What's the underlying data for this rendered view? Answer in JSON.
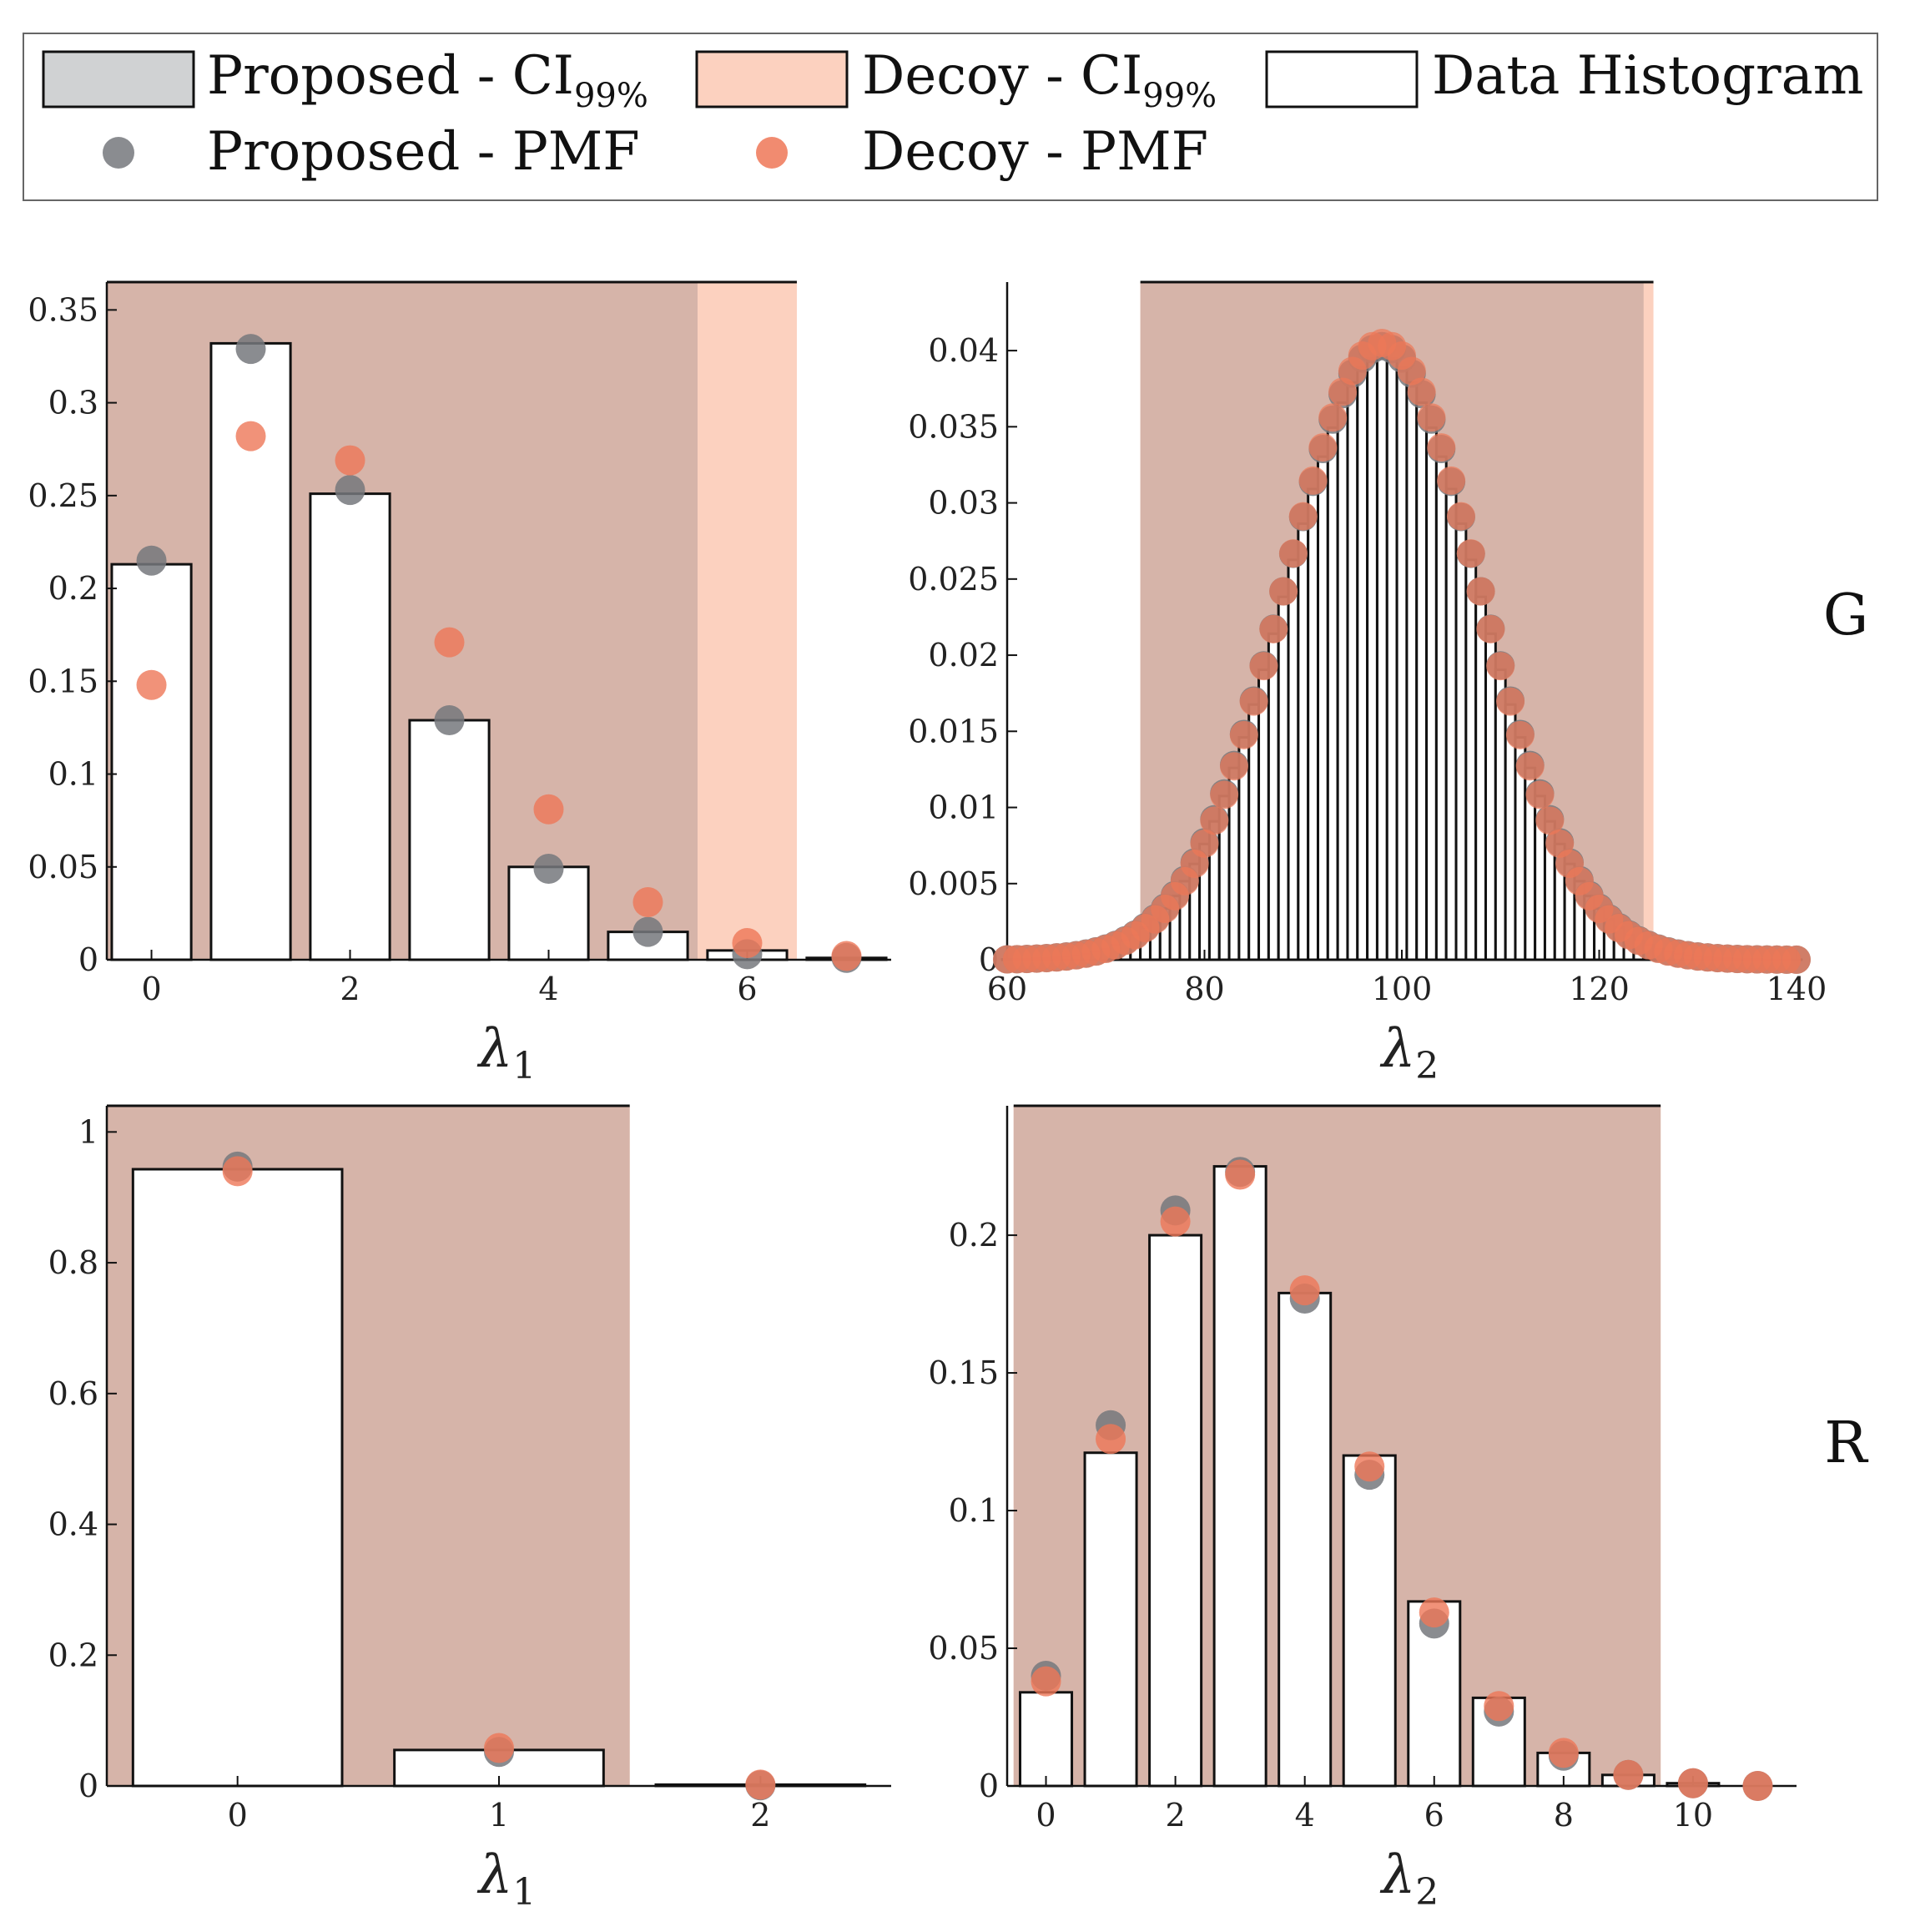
{
  "colors": {
    "proposed_ci": "#d0d2d3",
    "decoy_ci": "#fcd1bf",
    "overlap_ci": "#d6b4a9",
    "proposed_pmf": "#76787c",
    "decoy_pmf": "#ee7757",
    "hist_stroke": "#111111",
    "hist_fill": "#ffffff"
  },
  "legend": {
    "items": [
      {
        "id": "proposed-ci",
        "label": "Proposed - CI",
        "sub": "99%",
        "kind": "patch",
        "color": "#d0d2d3"
      },
      {
        "id": "decoy-ci",
        "label": "Decoy - CI",
        "sub": "99%",
        "kind": "patch",
        "color": "#fcd1bf"
      },
      {
        "id": "data-histogram",
        "label": "Data Histogram",
        "sub": "",
        "kind": "patch",
        "color": "#ffffff"
      },
      {
        "id": "proposed-pmf",
        "label": "Proposed - PMF",
        "sub": "",
        "kind": "dot",
        "color": "#76787c"
      },
      {
        "id": "decoy-pmf",
        "label": "Decoy - PMF",
        "sub": "",
        "kind": "dot",
        "color": "#ee7757"
      }
    ]
  },
  "row_labels": [
    "G",
    "R"
  ],
  "chart_data": [
    {
      "id": "G-lambda1",
      "type": "bar",
      "row": "G",
      "xlabel": "λ",
      "xlabel_sub": "1",
      "xlim": [
        -0.45,
        7.45
      ],
      "ylim": [
        0,
        0.365
      ],
      "xticks": [
        0,
        2,
        4,
        6
      ],
      "yticks": [
        0,
        0.05,
        0.1,
        0.15,
        0.2,
        0.25,
        0.3,
        0.35
      ],
      "ytick_labels": [
        "0",
        "0.05",
        "0.1",
        "0.15",
        "0.2",
        "0.25",
        "0.3",
        "0.35"
      ],
      "bar_width": 0.8,
      "histogram": {
        "x": [
          0,
          1,
          2,
          3,
          4,
          5,
          6,
          7
        ],
        "values": [
          0.213,
          0.332,
          0.251,
          0.129,
          0.05,
          0.015,
          0.005,
          0.001
        ]
      },
      "proposed_pmf": {
        "x": [
          0,
          1,
          2,
          3,
          4,
          5,
          6,
          7
        ],
        "values": [
          0.215,
          0.329,
          0.253,
          0.129,
          0.049,
          0.015,
          0.003,
          0.001
        ]
      },
      "decoy_pmf": {
        "x": [
          0,
          1,
          2,
          3,
          4,
          5,
          6,
          7
        ],
        "values": [
          0.148,
          0.282,
          0.269,
          0.171,
          0.081,
          0.031,
          0.009,
          0.002
        ]
      },
      "proposed_ci": [
        -0.5,
        5.5
      ],
      "decoy_ci": [
        -0.5,
        6.5
      ],
      "ci_top": 0.365
    },
    {
      "id": "G-lambda2",
      "type": "bar",
      "row": "G",
      "xlabel": "λ",
      "xlabel_sub": "2",
      "xlim": [
        60,
        140
      ],
      "ylim": [
        0,
        0.0445
      ],
      "xticks": [
        60,
        80,
        100,
        120,
        140
      ],
      "yticks": [
        0,
        0.005,
        0.01,
        0.015,
        0.02,
        0.025,
        0.03,
        0.035,
        0.04
      ],
      "ytick_labels": [
        "0",
        "0.005",
        "0.01",
        "0.015",
        "0.02",
        "0.025",
        "0.03",
        "0.035",
        "0.04"
      ],
      "bar_width": 1.0,
      "histogram": {
        "x_start": 60,
        "x_end": 140,
        "mean": 98,
        "sd": 9.9,
        "peak_formula": "normal"
      },
      "proposed_pmf": {
        "x_start": 60,
        "x_end": 140,
        "mean": 98,
        "sd": 9.9
      },
      "decoy_pmf": {
        "x_start": 60,
        "x_end": 140,
        "mean": 98,
        "sd": 9.85
      },
      "proposed_ci": [
        73.5,
        124.5
      ],
      "decoy_ci": [
        73.5,
        125.5
      ],
      "ci_top": 0.0445
    },
    {
      "id": "R-lambda1",
      "type": "bar",
      "row": "R",
      "xlabel": "λ",
      "xlabel_sub": "1",
      "xlim": [
        -0.5,
        2.5
      ],
      "ylim": [
        0,
        1.04
      ],
      "xticks": [
        0,
        1,
        2
      ],
      "yticks": [
        0,
        0.2,
        0.4,
        0.6,
        0.8,
        1
      ],
      "ytick_labels": [
        "0",
        "0.2",
        "0.4",
        "0.6",
        "0.8",
        "1"
      ],
      "bar_width": 0.8,
      "histogram": {
        "x": [
          0,
          1,
          2
        ],
        "values": [
          0.943,
          0.055,
          0.002
        ]
      },
      "proposed_pmf": {
        "x": [
          0,
          1,
          2
        ],
        "values": [
          0.947,
          0.052,
          0.001
        ]
      },
      "decoy_pmf": {
        "x": [
          0,
          1,
          2
        ],
        "values": [
          0.94,
          0.058,
          0.002
        ]
      },
      "proposed_ci": [
        -0.5,
        1.5
      ],
      "decoy_ci": [
        -0.5,
        1.5
      ],
      "ci_top": 1.04
    },
    {
      "id": "R-lambda2",
      "type": "bar",
      "row": "R",
      "xlabel": "λ",
      "xlabel_sub": "2",
      "xlim": [
        -0.6,
        11.6
      ],
      "ylim": [
        0,
        0.247
      ],
      "xticks": [
        0,
        2,
        4,
        6,
        8,
        10
      ],
      "yticks": [
        0,
        0.05,
        0.1,
        0.15,
        0.2
      ],
      "ytick_labels": [
        "0",
        "0.05",
        "0.1",
        "0.15",
        "0.2"
      ],
      "bar_width": 0.8,
      "histogram": {
        "x": [
          0,
          1,
          2,
          3,
          4,
          5,
          6,
          7,
          8,
          9,
          10,
          11
        ],
        "values": [
          0.034,
          0.121,
          0.2,
          0.225,
          0.179,
          0.12,
          0.067,
          0.032,
          0.012,
          0.004,
          0.001,
          0.0
        ]
      },
      "proposed_pmf": {
        "x": [
          0,
          1,
          2,
          3,
          4,
          5,
          6,
          7,
          8,
          9,
          10,
          11
        ],
        "values": [
          0.04,
          0.131,
          0.209,
          0.223,
          0.177,
          0.113,
          0.059,
          0.027,
          0.011,
          0.004,
          0.001,
          0.0
        ]
      },
      "decoy_pmf": {
        "x": [
          0,
          1,
          2,
          3,
          4,
          5,
          6,
          7,
          8,
          9,
          10,
          11
        ],
        "values": [
          0.038,
          0.126,
          0.205,
          0.222,
          0.18,
          0.116,
          0.063,
          0.029,
          0.012,
          0.004,
          0.001,
          0.0
        ]
      },
      "proposed_ci": [
        -0.5,
        9.5
      ],
      "decoy_ci": [
        -0.5,
        9.5
      ],
      "ci_top": 0.247
    }
  ]
}
